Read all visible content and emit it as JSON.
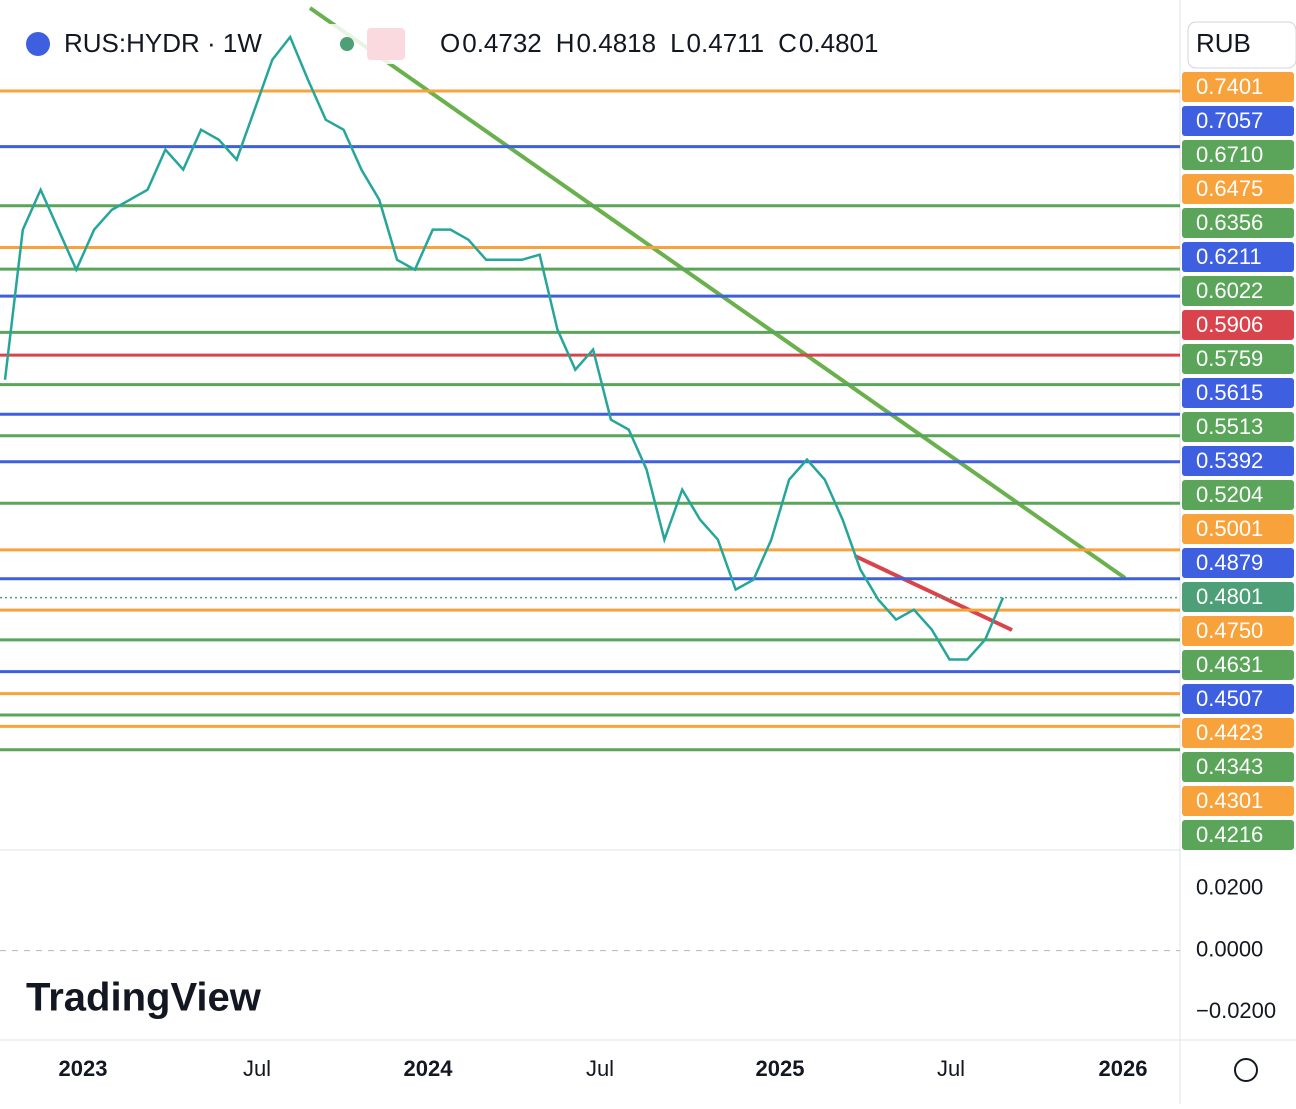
{
  "chart_data": {
    "type": "line",
    "title": "RUS:HYDR · 1W",
    "ohlc": [
      {
        "label": "O",
        "value": 0.4732
      },
      {
        "label": "H",
        "value": 0.4818
      },
      {
        "label": "L",
        "value": 0.4711
      },
      {
        "label": "C",
        "value": 0.4801
      }
    ],
    "currency": "RUB",
    "logo": "TradingView",
    "log_scale": true,
    "ylim": [
      0.387,
      0.777
    ],
    "color": "#26a69a",
    "values": [
      0.5783,
      0.6574,
      0.6802,
      0.6574,
      0.6353,
      0.6574,
      0.6687,
      0.6744,
      0.6802,
      0.7039,
      0.692,
      0.716,
      0.7099,
      0.6979,
      0.7283,
      0.7601,
      0.775,
      0.7472,
      0.7221,
      0.716,
      0.692,
      0.6744,
      0.6407,
      0.6353,
      0.6574,
      0.6574,
      0.6518,
      0.6407,
      0.6407,
      0.6407,
      0.6435,
      0.6036,
      0.5833,
      0.5934,
      0.5589,
      0.5542,
      0.5356,
      0.5045,
      0.5265,
      0.5132,
      0.5045,
      0.4834,
      0.4875,
      0.5045,
      0.531,
      0.5402,
      0.531,
      0.5132,
      0.4917,
      0.4793,
      0.4712,
      0.4752,
      0.4672,
      0.4554,
      0.4554,
      0.4632,
      0.4801
    ],
    "levels": [
      {
        "value": 0.7401,
        "color": "#f7a23b"
      },
      {
        "value": 0.7057,
        "color": "#3d5fe0"
      },
      {
        "value": {
          "value": 0.671,
          "label": "0.6710"
        },
        "color": "#5aa55a"
      },
      {
        "value": 0.6475,
        "color": "#f7a23b"
      },
      {
        "value": 0.6356,
        "color": "#5aa55a"
      },
      {
        "value": 0.6211,
        "color": "#3d5fe0"
      },
      {
        "value": 0.6022,
        "color": "#5aa55a"
      },
      {
        "value": 0.5906,
        "color": "#d9434b"
      },
      {
        "value": 0.5759,
        "color": "#5aa55a"
      },
      {
        "value": 0.5615,
        "color": "#3d5fe0"
      },
      {
        "value": 0.5513,
        "color": "#5aa55a"
      },
      {
        "value": 0.5392,
        "color": "#3d5fe0"
      },
      {
        "value": 0.5204,
        "color": "#5aa55a"
      },
      {
        "value": 0.5001,
        "color": "#f7a23b"
      },
      {
        "value": 0.4879,
        "color": "#3d5fe0"
      },
      {
        "value": 0.4801,
        "color": "#4c9f76",
        "dotted": true
      },
      {
        "value": {
          "value": 0.475,
          "label": "0.4750"
        },
        "color": "#f7a23b"
      },
      {
        "value": 0.4631,
        "color": "#5aa55a"
      },
      {
        "value": 0.4507,
        "color": "#3d5fe0"
      },
      {
        "value": 0.4423,
        "color": "#f7a23b"
      },
      {
        "value": 0.4343,
        "color": "#5aa55a"
      },
      {
        "value": 0.4301,
        "color": "#f7a23b"
      },
      {
        "value": 0.4216,
        "color": "#5aa55a"
      }
    ],
    "x_labels": [
      "2023",
      "Jul",
      "2024",
      "Jul",
      "2025",
      "Jul",
      "2026"
    ],
    "macd_ylim": [
      -0.029,
      0.031
    ],
    "macd_yticks": [
      {
        "value": 0.02,
        "label": "0.0200"
      },
      {
        "value": 0,
        "label": "0.0000"
      },
      {
        "value": -0.02,
        "label": "−0.0200"
      }
    ]
  }
}
